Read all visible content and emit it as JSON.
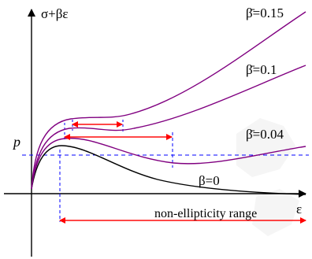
{
  "diagram": {
    "y_axis_label": "σ+βε",
    "x_axis_label": "ε",
    "p_label": "p",
    "range_label": "non-ellipticity range",
    "curve_labels": [
      "β̄=0.15",
      "β̄=0.1",
      "β̄=0.04",
      "β=0"
    ],
    "colors": {
      "purple": "#800080",
      "black": "#000000",
      "red": "#ff0000",
      "blue": "#0000ff",
      "watermark": "#f3f3f3"
    }
  }
}
